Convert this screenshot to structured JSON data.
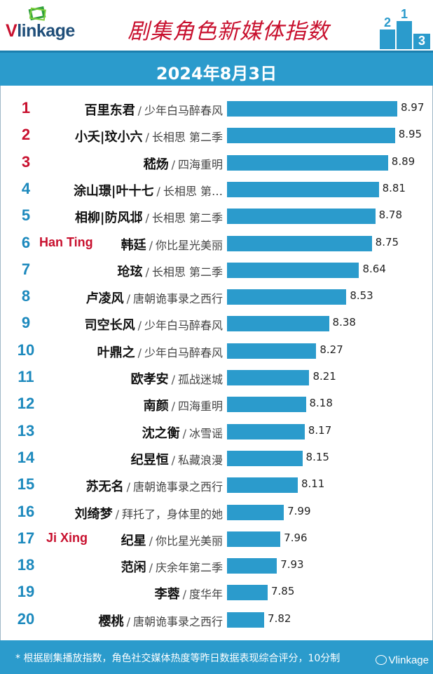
{
  "header": {
    "logo_v": "V",
    "logo_rest": "linkage",
    "title": "剧集角色新媒体指数",
    "podium_numbers": [
      "2",
      "1",
      "3"
    ]
  },
  "date": "2024年8月3日",
  "colors": {
    "bar": "#2b9bcc",
    "rank_top": "#c8102e",
    "rank_rest": "#1c89bd",
    "accent": "#c8102e"
  },
  "chart_data": {
    "type": "bar",
    "orientation": "horizontal",
    "title": "剧集角色新媒体指数",
    "xlim": [
      0,
      10
    ],
    "rows": [
      {
        "rank": "1",
        "name": "百里东君",
        "show": "少年白马醉春风",
        "value": 8.97
      },
      {
        "rank": "2",
        "name": "小夭|玟小六",
        "show": "长相思 第二季",
        "value": 8.95
      },
      {
        "rank": "3",
        "name": "嵇炀",
        "show": "四海重明",
        "value": 8.89
      },
      {
        "rank": "4",
        "name": "涂山璟|叶十七",
        "show": "长相思 第…",
        "value": 8.81
      },
      {
        "rank": "5",
        "name": "相柳|防风邶",
        "show": "长相思 第二季",
        "value": 8.78
      },
      {
        "rank": "6",
        "name": "韩廷",
        "show": "你比星光美丽",
        "value": 8.75
      },
      {
        "rank": "7",
        "name": "玱玹",
        "show": "长相思 第二季",
        "value": 8.64
      },
      {
        "rank": "8",
        "name": "卢凌风",
        "show": "唐朝诡事录之西行",
        "value": 8.53
      },
      {
        "rank": "9",
        "name": "司空长风",
        "show": "少年白马醉春风",
        "value": 8.38
      },
      {
        "rank": "10",
        "name": "叶鼎之",
        "show": "少年白马醉春风",
        "value": 8.27
      },
      {
        "rank": "11",
        "name": "欧孝安",
        "show": "孤战迷城",
        "value": 8.21
      },
      {
        "rank": "12",
        "name": "南颜",
        "show": "四海重明",
        "value": 8.18
      },
      {
        "rank": "13",
        "name": "沈之衡",
        "show": "冰雪谣",
        "value": 8.17
      },
      {
        "rank": "14",
        "name": "纪昱恒",
        "show": "私藏浪漫",
        "value": 8.15
      },
      {
        "rank": "15",
        "name": "苏无名",
        "show": "唐朝诡事录之西行",
        "value": 8.11
      },
      {
        "rank": "16",
        "name": "刘绮梦",
        "show": "拜托了，身体里的她",
        "value": 7.99
      },
      {
        "rank": "17",
        "name": "纪星",
        "show": "你比星光美丽",
        "value": 7.96
      },
      {
        "rank": "18",
        "name": "范闲",
        "show": "庆余年第二季",
        "value": 7.93
      },
      {
        "rank": "19",
        "name": "李蓉",
        "show": "度华年",
        "value": 7.85
      },
      {
        "rank": "20",
        "name": "樱桃",
        "show": "唐朝诡事录之西行",
        "value": 7.82
      }
    ],
    "annotations": [
      {
        "rank": "6",
        "text": "Han Ting"
      },
      {
        "rank": "17",
        "text": "Ji Xing"
      }
    ]
  },
  "footer": {
    "note": "* 根据剧集播放指数，角色社交媒体热度等昨日数据表现综合评分，10分制",
    "watermark": "Vlinkage"
  }
}
